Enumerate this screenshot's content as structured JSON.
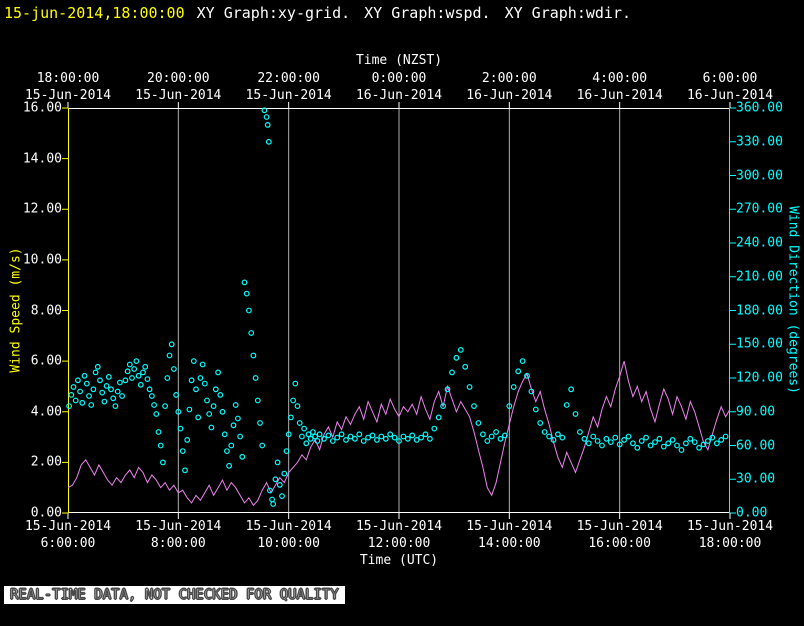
{
  "header": {
    "timestamp": "15-jun-2014,18:00:00",
    "graph_titles": [
      "XY Graph:xy-grid.",
      "XY Graph:wspd.",
      "XY Graph:wdir."
    ]
  },
  "footer": {
    "notice": "REAL-TIME DATA, NOT CHECKED FOR QUALITY"
  },
  "chart_data": {
    "type": "line",
    "grid": {
      "vertical": true,
      "horizontal": false,
      "color": "#b0b0b0"
    },
    "x_range_utc_hours": [
      6,
      18
    ],
    "top_axis": {
      "label": "Time (NZST)",
      "ticks": [
        [
          "18:00:00",
          "15-Jun-2014"
        ],
        [
          "20:00:00",
          "15-Jun-2014"
        ],
        [
          "22:00:00",
          "15-Jun-2014"
        ],
        [
          "0:00:00",
          "16-Jun-2014"
        ],
        [
          "2:00:00",
          "16-Jun-2014"
        ],
        [
          "4:00:00",
          "16-Jun-2014"
        ],
        [
          "6:00:00",
          "16-Jun-2014"
        ]
      ]
    },
    "bottom_axis": {
      "label": "Time (UTC)",
      "ticks": [
        [
          "15-Jun-2014",
          "6:00:00"
        ],
        [
          "15-Jun-2014",
          "8:00:00"
        ],
        [
          "15-Jun-2014",
          "10:00:00"
        ],
        [
          "15-Jun-2014",
          "12:00:00"
        ],
        [
          "15-Jun-2014",
          "14:00:00"
        ],
        [
          "15-Jun-2014",
          "16:00:00"
        ],
        [
          "15-Jun-2014",
          "18:00:00"
        ]
      ]
    },
    "left_axis": {
      "label": "Wind Speed (m/s)",
      "min": 0,
      "max": 16,
      "tick_step": 2,
      "color": "#ffff00",
      "tick_labels": [
        "16.00",
        "14.00",
        "12.00",
        "10.00",
        "8.00",
        "6.00",
        "4.00",
        "2.00",
        "0.00"
      ]
    },
    "right_axis": {
      "label": "Wind Direction (degrees)",
      "min": 0,
      "max": 360,
      "tick_step": 30,
      "color": "#00ffff",
      "tick_labels": [
        "360.00",
        "330.00",
        "300.00",
        "270.00",
        "240.00",
        "210.00",
        "180.00",
        "150.00",
        "120.00",
        "90.00",
        "60.00",
        "30.00",
        "0.00"
      ]
    },
    "series": [
      {
        "name": "wspd",
        "label": "Wind Speed",
        "render": "line",
        "axis": "left",
        "color": "#ee82ee",
        "x_start": 6.0,
        "x_step": 0.08,
        "values": [
          1.0,
          1.1,
          1.4,
          1.9,
          2.1,
          1.8,
          1.5,
          1.9,
          1.6,
          1.3,
          1.1,
          1.4,
          1.2,
          1.5,
          1.7,
          1.4,
          1.8,
          1.6,
          1.2,
          1.5,
          1.3,
          1.0,
          1.2,
          0.9,
          1.1,
          0.8,
          0.9,
          0.6,
          0.4,
          0.7,
          0.5,
          0.8,
          1.1,
          0.7,
          1.0,
          1.3,
          0.9,
          1.2,
          1.0,
          0.7,
          0.4,
          0.6,
          0.3,
          0.5,
          0.9,
          1.2,
          0.8,
          1.1,
          1.4,
          1.2,
          1.6,
          1.8,
          2.0,
          2.3,
          2.1,
          2.6,
          2.9,
          2.5,
          3.1,
          3.4,
          3.0,
          3.6,
          3.3,
          3.8,
          3.5,
          3.9,
          4.2,
          3.7,
          4.4,
          4.0,
          3.6,
          4.3,
          3.9,
          4.5,
          4.1,
          3.8,
          4.2,
          4.0,
          4.3,
          3.9,
          4.6,
          4.1,
          3.7,
          4.4,
          4.8,
          4.2,
          5.0,
          4.5,
          4.0,
          4.4,
          4.1,
          3.8,
          3.2,
          2.5,
          1.8,
          1.0,
          0.7,
          1.2,
          2.0,
          2.8,
          3.5,
          4.2,
          4.8,
          5.2,
          5.5,
          4.9,
          4.4,
          4.8,
          4.1,
          3.5,
          2.8,
          2.2,
          1.8,
          2.4,
          2.0,
          1.6,
          2.1,
          2.6,
          3.2,
          3.8,
          3.4,
          4.1,
          4.6,
          4.2,
          4.9,
          5.4,
          6.0,
          5.2,
          4.6,
          5.0,
          4.4,
          4.8,
          4.1,
          3.6,
          4.3,
          4.9,
          4.5,
          3.9,
          4.6,
          4.2,
          3.7,
          4.4,
          4.0,
          3.4,
          2.8,
          2.5,
          3.1,
          3.7,
          4.2,
          3.8,
          4.1
        ]
      },
      {
        "name": "wdir",
        "label": "Wind Direction",
        "render": "scatter",
        "axis": "right",
        "color": "#00ffff",
        "points": [
          [
            6.02,
            95
          ],
          [
            6.06,
            105
          ],
          [
            6.1,
            112
          ],
          [
            6.14,
            100
          ],
          [
            6.18,
            118
          ],
          [
            6.22,
            108
          ],
          [
            6.26,
            98
          ],
          [
            6.3,
            122
          ],
          [
            6.34,
            115
          ],
          [
            6.38,
            104
          ],
          [
            6.42,
            96
          ],
          [
            6.46,
            110
          ],
          [
            6.5,
            125
          ],
          [
            6.54,
            130
          ],
          [
            6.58,
            118
          ],
          [
            6.62,
            107
          ],
          [
            6.66,
            99
          ],
          [
            6.7,
            113
          ],
          [
            6.74,
            121
          ],
          [
            6.78,
            110
          ],
          [
            6.82,
            102
          ],
          [
            6.86,
            95
          ],
          [
            6.9,
            108
          ],
          [
            6.94,
            116
          ],
          [
            6.98,
            104
          ],
          [
            7.04,
            118
          ],
          [
            7.08,
            126
          ],
          [
            7.12,
            132
          ],
          [
            7.16,
            120
          ],
          [
            7.2,
            128
          ],
          [
            7.24,
            135
          ],
          [
            7.28,
            122
          ],
          [
            7.32,
            114
          ],
          [
            7.36,
            125
          ],
          [
            7.4,
            130
          ],
          [
            7.44,
            119
          ],
          [
            7.48,
            110
          ],
          [
            7.52,
            104
          ],
          [
            7.56,
            96
          ],
          [
            7.6,
            88
          ],
          [
            7.64,
            72
          ],
          [
            7.68,
            60
          ],
          [
            7.72,
            45
          ],
          [
            7.76,
            95
          ],
          [
            7.8,
            120
          ],
          [
            7.84,
            140
          ],
          [
            7.88,
            150
          ],
          [
            7.92,
            128
          ],
          [
            7.96,
            105
          ],
          [
            8.0,
            90
          ],
          [
            8.04,
            75
          ],
          [
            8.08,
            55
          ],
          [
            8.12,
            38
          ],
          [
            8.16,
            65
          ],
          [
            8.2,
            92
          ],
          [
            8.24,
            118
          ],
          [
            8.28,
            135
          ],
          [
            8.32,
            110
          ],
          [
            8.36,
            85
          ],
          [
            8.4,
            120
          ],
          [
            8.44,
            132
          ],
          [
            8.48,
            115
          ],
          [
            8.52,
            100
          ],
          [
            8.56,
            88
          ],
          [
            8.6,
            76
          ],
          [
            8.64,
            95
          ],
          [
            8.68,
            110
          ],
          [
            8.72,
            125
          ],
          [
            8.76,
            105
          ],
          [
            8.8,
            90
          ],
          [
            8.84,
            70
          ],
          [
            8.88,
            55
          ],
          [
            8.92,
            42
          ],
          [
            8.96,
            60
          ],
          [
            9.0,
            78
          ],
          [
            9.04,
            96
          ],
          [
            9.08,
            84
          ],
          [
            9.12,
            68
          ],
          [
            9.16,
            50
          ],
          [
            9.2,
            205
          ],
          [
            9.24,
            195
          ],
          [
            9.28,
            180
          ],
          [
            9.32,
            160
          ],
          [
            9.36,
            140
          ],
          [
            9.4,
            120
          ],
          [
            9.44,
            100
          ],
          [
            9.48,
            80
          ],
          [
            9.52,
            60
          ],
          [
            9.56,
            358
          ],
          [
            9.6,
            352
          ],
          [
            9.62,
            345
          ],
          [
            9.64,
            330
          ],
          [
            9.66,
            20
          ],
          [
            9.7,
            12
          ],
          [
            9.72,
            8
          ],
          [
            9.76,
            30
          ],
          [
            9.8,
            45
          ],
          [
            9.84,
            25
          ],
          [
            9.88,
            15
          ],
          [
            9.92,
            35
          ],
          [
            9.96,
            55
          ],
          [
            10.0,
            70
          ],
          [
            10.04,
            85
          ],
          [
            10.08,
            100
          ],
          [
            10.12,
            115
          ],
          [
            10.16,
            95
          ],
          [
            10.2,
            80
          ],
          [
            10.24,
            68
          ],
          [
            10.28,
            75
          ],
          [
            10.32,
            62
          ],
          [
            10.36,
            70
          ],
          [
            10.4,
            66
          ],
          [
            10.44,
            72
          ],
          [
            10.48,
            68
          ],
          [
            10.52,
            64
          ],
          [
            10.56,
            70
          ],
          [
            10.64,
            66
          ],
          [
            10.72,
            69
          ],
          [
            10.8,
            64
          ],
          [
            10.88,
            67
          ],
          [
            10.96,
            70
          ],
          [
            11.04,
            65
          ],
          [
            11.12,
            68
          ],
          [
            11.2,
            66
          ],
          [
            11.28,
            70
          ],
          [
            11.36,
            64
          ],
          [
            11.44,
            67
          ],
          [
            11.52,
            69
          ],
          [
            11.6,
            65
          ],
          [
            11.68,
            68
          ],
          [
            11.76,
            66
          ],
          [
            11.84,
            70
          ],
          [
            11.92,
            67
          ],
          [
            12.0,
            64
          ],
          [
            12.08,
            68
          ],
          [
            12.16,
            66
          ],
          [
            12.24,
            69
          ],
          [
            12.32,
            65
          ],
          [
            12.4,
            67
          ],
          [
            12.48,
            70
          ],
          [
            12.56,
            66
          ],
          [
            12.64,
            75
          ],
          [
            12.72,
            85
          ],
          [
            12.8,
            95
          ],
          [
            12.88,
            110
          ],
          [
            12.96,
            125
          ],
          [
            13.04,
            138
          ],
          [
            13.12,
            145
          ],
          [
            13.2,
            130
          ],
          [
            13.28,
            112
          ],
          [
            13.36,
            95
          ],
          [
            13.44,
            80
          ],
          [
            13.52,
            70
          ],
          [
            13.6,
            64
          ],
          [
            13.68,
            68
          ],
          [
            13.76,
            72
          ],
          [
            13.84,
            66
          ],
          [
            13.92,
            69
          ],
          [
            14.0,
            95
          ],
          [
            14.08,
            112
          ],
          [
            14.16,
            126
          ],
          [
            14.24,
            135
          ],
          [
            14.32,
            122
          ],
          [
            14.4,
            108
          ],
          [
            14.48,
            92
          ],
          [
            14.56,
            80
          ],
          [
            14.64,
            72
          ],
          [
            14.72,
            68
          ],
          [
            14.8,
            65
          ],
          [
            14.88,
            70
          ],
          [
            14.96,
            67
          ],
          [
            15.04,
            96
          ],
          [
            15.12,
            110
          ],
          [
            15.2,
            88
          ],
          [
            15.28,
            72
          ],
          [
            15.36,
            66
          ],
          [
            15.44,
            62
          ],
          [
            15.52,
            68
          ],
          [
            15.6,
            64
          ],
          [
            15.68,
            60
          ],
          [
            15.76,
            66
          ],
          [
            15.84,
            63
          ],
          [
            15.92,
            67
          ],
          [
            16.0,
            61
          ],
          [
            16.08,
            65
          ],
          [
            16.16,
            68
          ],
          [
            16.24,
            62
          ],
          [
            16.32,
            58
          ],
          [
            16.4,
            64
          ],
          [
            16.48,
            67
          ],
          [
            16.56,
            60
          ],
          [
            16.64,
            63
          ],
          [
            16.72,
            66
          ],
          [
            16.8,
            59
          ],
          [
            16.88,
            62
          ],
          [
            16.96,
            65
          ],
          [
            17.04,
            60
          ],
          [
            17.12,
            56
          ],
          [
            17.2,
            62
          ],
          [
            17.28,
            66
          ],
          [
            17.36,
            63
          ],
          [
            17.44,
            58
          ],
          [
            17.52,
            61
          ],
          [
            17.6,
            64
          ],
          [
            17.68,
            67
          ],
          [
            17.76,
            62
          ],
          [
            17.84,
            65
          ],
          [
            17.92,
            68
          ]
        ]
      }
    ]
  }
}
